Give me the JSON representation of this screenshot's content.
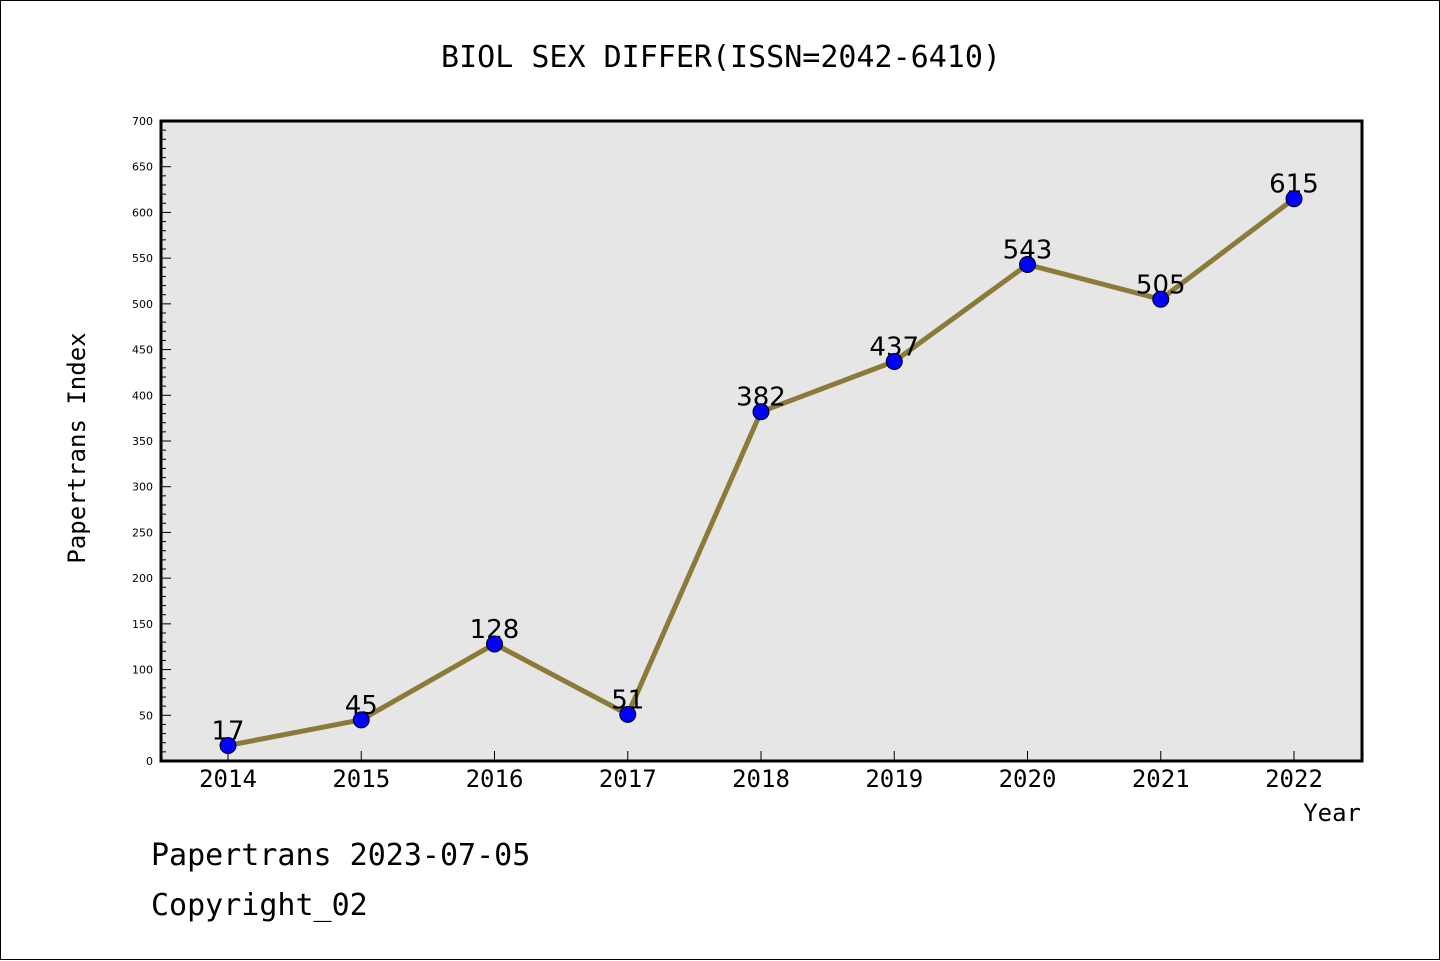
{
  "chart_data": {
    "type": "line",
    "title": "BIOL SEX DIFFER(ISSN=2042-6410)",
    "xlabel": "Year",
    "ylabel": "Papertrans Index",
    "categories": [
      "2014",
      "2015",
      "2016",
      "2017",
      "2018",
      "2019",
      "2020",
      "2021",
      "2022"
    ],
    "values": [
      17,
      45,
      128,
      51,
      382,
      437,
      543,
      505,
      615
    ],
    "ylim": [
      0,
      700
    ],
    "yticks": [
      "0",
      "50",
      "100",
      "150",
      "200",
      "250",
      "300",
      "350",
      "400",
      "450",
      "500",
      "550",
      "600",
      "650",
      "700"
    ],
    "grid": false,
    "line_color": "#8b7a38",
    "marker_color": "#0000ff",
    "plot_background": "#e6e6e6"
  },
  "footer": {
    "line1": "Papertrans 2023-07-05",
    "line2": "Copyright_02"
  }
}
